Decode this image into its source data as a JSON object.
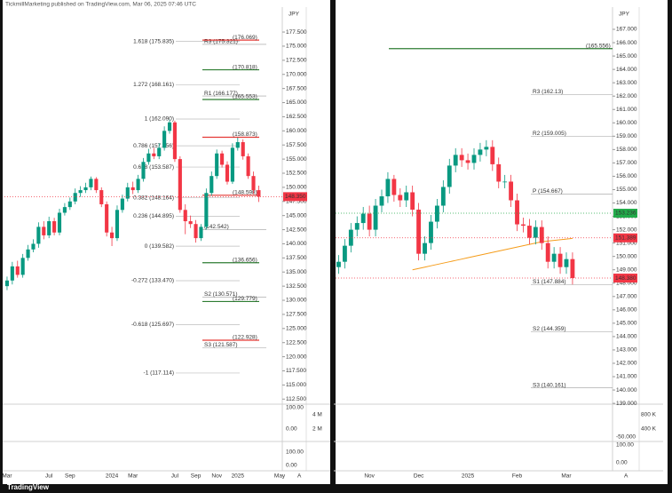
{
  "header": "TickmillMarketing published on TradingView.com, Mar 06, 2025 07:46 UTC",
  "footer": "TradingView",
  "chart_data": [
    {
      "type": "candlestick",
      "axis_label": "JPY",
      "scale_mode": "A",
      "categories": [
        "Mar",
        null,
        null,
        null,
        null,
        null,
        null,
        null,
        "Jul",
        null,
        null,
        null,
        "Sep",
        null,
        null,
        null,
        null,
        null,
        null,
        null,
        "2024",
        null,
        null,
        null,
        "Mar",
        null,
        null,
        null,
        null,
        null,
        null,
        null,
        "Jul",
        null,
        null,
        null,
        "Sep",
        null,
        null,
        null,
        "Nov",
        null,
        null,
        null,
        "2025",
        null,
        null,
        null,
        null,
        null,
        null,
        null,
        "May"
      ],
      "open": [
        132.5,
        133.5,
        136,
        134.5,
        137.5,
        139,
        140,
        143,
        141.5,
        144,
        142,
        145.5,
        146.5,
        147.5,
        149,
        149.5,
        150,
        151.5,
        149.5,
        147,
        142,
        141,
        146,
        148,
        150,
        149.5,
        151.5,
        154.5,
        156,
        155.5,
        157,
        160,
        161.5,
        155,
        146,
        144,
        143.5,
        141,
        143,
        149,
        152,
        156,
        154,
        151,
        157,
        158,
        155.5,
        152,
        149.5,
        null,
        null,
        null,
        null
      ],
      "high": [
        134.2,
        136.8,
        137,
        138.2,
        139.8,
        140.8,
        143.8,
        144,
        144.8,
        144.6,
        146.2,
        147.2,
        148.2,
        149.8,
        150.2,
        150.8,
        151.9,
        151.8,
        150,
        147.5,
        143,
        146.8,
        148.7,
        150.8,
        151,
        152.2,
        155.2,
        156.8,
        157,
        157.8,
        160.8,
        162,
        161.8,
        155.5,
        147,
        145,
        144.2,
        143.5,
        149.8,
        152.8,
        156.7,
        156.5,
        154.6,
        157.8,
        158.8,
        158.5,
        156,
        152.8,
        150.3,
        null,
        null,
        null,
        null
      ],
      "low": [
        131.8,
        132.8,
        134,
        134,
        137,
        138.5,
        139.3,
        140.8,
        141,
        141.5,
        141.5,
        145,
        146,
        147,
        148.3,
        149,
        149.5,
        149,
        146.5,
        141.3,
        139.6,
        140.5,
        145.5,
        147.5,
        148.8,
        149,
        151,
        154,
        155,
        155,
        156.5,
        159.5,
        154.5,
        145.5,
        141.7,
        142.8,
        140.2,
        140.5,
        142.5,
        148.5,
        151.5,
        153.5,
        150.5,
        150.6,
        156.5,
        154.9,
        151.5,
        148.8,
        147.4,
        null,
        null,
        null,
        null
      ],
      "close": [
        133.5,
        136,
        134.5,
        137.5,
        139,
        140,
        143,
        141.5,
        144,
        142,
        145.5,
        146.5,
        147.5,
        149,
        149.5,
        150,
        151.5,
        149.5,
        147,
        142,
        141,
        146,
        148,
        150,
        149.5,
        151.5,
        154.5,
        156,
        155.5,
        157,
        160,
        161.5,
        155,
        146,
        144,
        143.5,
        141,
        143,
        149,
        152,
        156,
        154,
        151,
        157,
        158,
        155.5,
        152,
        149.5,
        148.35,
        null,
        null,
        null,
        null
      ],
      "up_color": "#089981",
      "down_color": "#f23645",
      "ylim": [
        111.6,
        181.6
      ],
      "yticks": [
        {
          "value": 112.5,
          "label": "112.500"
        },
        {
          "value": 115,
          "label": "115.000"
        },
        {
          "value": 117.5,
          "label": "117.500"
        },
        {
          "value": 120,
          "label": "120.000"
        },
        {
          "value": 122.5,
          "label": "122.500"
        },
        {
          "value": 125,
          "label": "125.000"
        },
        {
          "value": 127.5,
          "label": "127.500"
        },
        {
          "value": 130,
          "label": "130.000"
        },
        {
          "value": 132.5,
          "label": "132.500"
        },
        {
          "value": 135,
          "label": "135.000"
        },
        {
          "value": 137.5,
          "label": "137.500"
        },
        {
          "value": 140,
          "label": "140.000"
        },
        {
          "value": 142.5,
          "label": "142.500"
        },
        {
          "value": 145,
          "label": "145.000"
        },
        {
          "value": 147.5,
          "label": "147.500"
        },
        {
          "value": 150,
          "label": "150.000"
        },
        {
          "value": 152.5,
          "label": "152.500"
        },
        {
          "value": 155,
          "label": "155.000"
        },
        {
          "value": 157.5,
          "label": "157.500"
        },
        {
          "value": 160,
          "label": "160.000"
        },
        {
          "value": 162.5,
          "label": "162.500"
        },
        {
          "value": 165,
          "label": "165.000"
        },
        {
          "value": 167.5,
          "label": "167.500"
        },
        {
          "value": 170,
          "label": "170.000"
        },
        {
          "value": 172.5,
          "label": "172.500"
        },
        {
          "value": 175,
          "label": "175.000"
        },
        {
          "value": 177.5,
          "label": "177.500"
        }
      ],
      "levels": [
        {
          "kind": "fib",
          "label": "1.618 (175.835)",
          "value": 175.835,
          "color": "#2c3a7a"
        },
        {
          "kind": "fib",
          "label": "1.272 (168.161)",
          "value": 168.161,
          "color": "#2c3a7a"
        },
        {
          "kind": "fib",
          "label": "1 (162.090)",
          "value": 162.09,
          "color": "#2c3a7a"
        },
        {
          "kind": "fib",
          "label": "0.786 (157.356)",
          "value": 157.356,
          "color": "#d32f2f"
        },
        {
          "kind": "fib",
          "label": "0.618 (153.587)",
          "value": 153.587,
          "color": "#2c3a7a"
        },
        {
          "kind": "fib",
          "label": "0.382 (148.164)",
          "value": 148.164,
          "color": "#2c3a7a"
        },
        {
          "kind": "fib",
          "label": "0.236 (144.895)",
          "value": 144.895,
          "color": "#2c3a7a"
        },
        {
          "kind": "fib",
          "label": "0 (139.582)",
          "value": 139.582,
          "color": "#2c3a7a"
        },
        {
          "kind": "fib",
          "label": "-0.272 (133.470)",
          "value": 133.47,
          "color": "#2c3a7a"
        },
        {
          "kind": "fib",
          "label": "-0.618 (125.697)",
          "value": 125.697,
          "color": "#2c3a7a"
        },
        {
          "kind": "fib",
          "label": "-1 (117.114)",
          "value": 117.114,
          "color": "#2c3a7a"
        },
        {
          "kind": "pivot",
          "label": "R3 (175.321)",
          "value": 175.321,
          "color": "#9e9e9e"
        },
        {
          "kind": "pivot",
          "label": "R1 (166.177)",
          "value": 166.177,
          "color": "#9e9e9e"
        },
        {
          "kind": "pivot",
          "label": "(142.542)",
          "value": 142.542,
          "color": "#9e9e9e"
        },
        {
          "kind": "pivot",
          "label": "S2 (130.571)",
          "value": 130.571,
          "color": "#9e9e9e"
        },
        {
          "kind": "pivot",
          "label": "S3 (121.587)",
          "value": 121.587,
          "color": "#9e9e9e"
        },
        {
          "kind": "level",
          "label": "(176.069)",
          "value": 176.069,
          "color": "#e53935"
        },
        {
          "kind": "level",
          "label": "(170.818)",
          "value": 170.818,
          "color": "#2e7d32"
        },
        {
          "kind": "level",
          "label": "(165.553)",
          "value": 165.553,
          "color": "#2e7d32"
        },
        {
          "kind": "level",
          "label": "(158.873)",
          "value": 158.873,
          "color": "#e53935"
        },
        {
          "kind": "level",
          "label": "(148.598)",
          "value": 148.598,
          "color": "#e53935"
        },
        {
          "kind": "level",
          "label": "(136.656)",
          "value": 136.656,
          "color": "#2e7d32"
        },
        {
          "kind": "level",
          "label": "(129.779)",
          "value": 129.779,
          "color": "#2e7d32"
        },
        {
          "kind": "level",
          "label": "(122.928)",
          "value": 122.928,
          "color": "#e53935"
        }
      ],
      "price_labels": [
        {
          "value": 148.35,
          "label": "148.350",
          "color": "#f23645"
        }
      ],
      "sub_labels": [
        "100.00",
        "0.00",
        "4 M",
        "2 M",
        "100.00",
        "0.00"
      ]
    },
    {
      "type": "candlestick",
      "axis_label": "JPY",
      "scale_mode": "A",
      "categories": [
        null,
        null,
        null,
        null,
        null,
        "Nov",
        null,
        null,
        null,
        null,
        null,
        null,
        null,
        "Dec",
        null,
        null,
        null,
        null,
        null,
        null,
        null,
        "2025",
        null,
        null,
        null,
        null,
        null,
        null,
        null,
        "Feb",
        null,
        null,
        null,
        null,
        null,
        null,
        null,
        "Mar",
        null,
        null,
        null,
        null,
        null,
        null,
        null
      ],
      "open": [
        149.2,
        149.6,
        150.8,
        152.0,
        152.5,
        153.2,
        152.0,
        153.8,
        154.5,
        155.8,
        154.6,
        154.2,
        154.8,
        153.5,
        150.2,
        151.0,
        152.6,
        153.8,
        155.2,
        156.8,
        157.6,
        157.2,
        157.0,
        157.6,
        158.0,
        158.2,
        156.9,
        155.6,
        155.6,
        154.2,
        152.4,
        152.3,
        151.4,
        152.2,
        151.0,
        149.6,
        150.2,
        149.2,
        149.8,
        null,
        null,
        null,
        null,
        null,
        null
      ],
      "high": [
        150.1,
        151.3,
        152.5,
        153.0,
        153.7,
        153.8,
        154.3,
        155.0,
        156.3,
        156.1,
        155.1,
        155.3,
        155.3,
        154.0,
        151.5,
        153.1,
        154.3,
        155.7,
        157.3,
        158.1,
        158.1,
        157.7,
        158.1,
        158.5,
        158.7,
        158.7,
        157.4,
        156.1,
        156.1,
        154.7,
        152.9,
        152.8,
        152.7,
        152.7,
        151.5,
        150.7,
        150.7,
        150.3,
        150.3,
        null,
        null,
        null,
        null,
        null,
        null
      ],
      "low": [
        148.7,
        149.1,
        150.3,
        151.5,
        152.0,
        151.5,
        151.5,
        153.3,
        154.0,
        154.1,
        153.7,
        153.7,
        153.0,
        149.7,
        149.7,
        150.5,
        152.1,
        153.3,
        154.7,
        156.3,
        156.7,
        156.5,
        156.5,
        157.1,
        157.5,
        156.4,
        155.1,
        155.1,
        153.7,
        151.9,
        151.8,
        150.9,
        150.9,
        150.5,
        149.1,
        149.1,
        148.7,
        148.7,
        147.9,
        null,
        null,
        null,
        null,
        null,
        null
      ],
      "close": [
        149.6,
        150.8,
        152.0,
        152.5,
        153.2,
        152.0,
        153.8,
        154.5,
        155.8,
        154.6,
        154.2,
        154.8,
        153.5,
        150.2,
        151.0,
        152.6,
        153.8,
        155.2,
        156.8,
        157.6,
        157.2,
        157.0,
        157.6,
        158.0,
        158.2,
        156.9,
        155.6,
        155.6,
        154.2,
        152.4,
        152.3,
        151.4,
        152.2,
        151.0,
        149.6,
        150.2,
        149.2,
        149.8,
        148.38,
        null,
        null,
        null,
        null,
        null,
        null
      ],
      "ma": [
        null,
        null,
        null,
        null,
        null,
        null,
        null,
        null,
        null,
        null,
        null,
        null,
        149.0,
        149.1,
        149.2,
        149.3,
        149.4,
        149.5,
        149.6,
        149.7,
        149.8,
        149.9,
        150.0,
        150.1,
        150.2,
        150.3,
        150.4,
        150.5,
        150.6,
        150.7,
        150.8,
        150.9,
        151.0,
        151.1,
        151.15,
        151.2,
        151.25,
        151.3,
        151.35,
        null,
        null,
        null,
        null,
        null,
        null
      ],
      "ma_color": "#f59c1a",
      "up_color": "#089981",
      "down_color": "#f23645",
      "ylim": [
        138.94,
        168.53
      ],
      "yticks": [
        {
          "value": 139,
          "label": "139.000"
        },
        {
          "value": 140,
          "label": "140.000"
        },
        {
          "value": 141,
          "label": "141.000"
        },
        {
          "value": 142,
          "label": "142.000"
        },
        {
          "value": 143,
          "label": "143.000"
        },
        {
          "value": 144,
          "label": "144.000"
        },
        {
          "value": 145,
          "label": "145.000"
        },
        {
          "value": 146,
          "label": "146.000"
        },
        {
          "value": 147,
          "label": "147.000"
        },
        {
          "value": 148,
          "label": "148.000"
        },
        {
          "value": 149,
          "label": "149.000"
        },
        {
          "value": 150,
          "label": "150.000"
        },
        {
          "value": 151,
          "label": "151.000"
        },
        {
          "value": 152,
          "label": "152.000"
        },
        {
          "value": 153,
          "label": "153.000"
        },
        {
          "value": 154,
          "label": "154.000"
        },
        {
          "value": 155,
          "label": "155.000"
        },
        {
          "value": 156,
          "label": "156.000"
        },
        {
          "value": 157,
          "label": "157.000"
        },
        {
          "value": 158,
          "label": "158.000"
        },
        {
          "value": 159,
          "label": "159.000"
        },
        {
          "value": 160,
          "label": "160.000"
        },
        {
          "value": 161,
          "label": "161.000"
        },
        {
          "value": 162,
          "label": "162.000"
        },
        {
          "value": 163,
          "label": "163.000"
        },
        {
          "value": 164,
          "label": "164.000"
        },
        {
          "value": 165,
          "label": "165.000"
        },
        {
          "value": 166,
          "label": "166.000"
        },
        {
          "value": 167,
          "label": "167.000"
        }
      ],
      "levels": [
        {
          "kind": "level",
          "label": "(165.556)",
          "value": 165.556,
          "color": "#2e7d32"
        },
        {
          "kind": "pivot",
          "label": "R3 (162.13)",
          "value": 162.13,
          "color": "#9e9e9e"
        },
        {
          "kind": "pivot",
          "label": "R2 (159.005)",
          "value": 159.005,
          "color": "#9e9e9e"
        },
        {
          "kind": "pivot",
          "label": "P (154.667)",
          "value": 154.667,
          "color": "#9e9e9e"
        },
        {
          "kind": "pivot",
          "label": "S1 (147.884)",
          "value": 147.884,
          "color": "#9e9e9e"
        },
        {
          "kind": "pivot",
          "label": "S2 (144.359)",
          "value": 144.359,
          "color": "#9e9e9e"
        },
        {
          "kind": "pivot",
          "label": "S3 (140.161)",
          "value": 140.161,
          "color": "#9e9e9e"
        }
      ],
      "price_labels": [
        {
          "value": 153.236,
          "label": "153.236",
          "color": "#22ab4a"
        },
        {
          "value": 151.389,
          "label": "151.389",
          "color": "#f23645"
        },
        {
          "value": 148.38,
          "label": "148.380",
          "color": "#f23645"
        }
      ],
      "sub_labels": [
        "800 K",
        "400 K",
        "-50.000",
        "100.00",
        "0.00"
      ]
    }
  ]
}
